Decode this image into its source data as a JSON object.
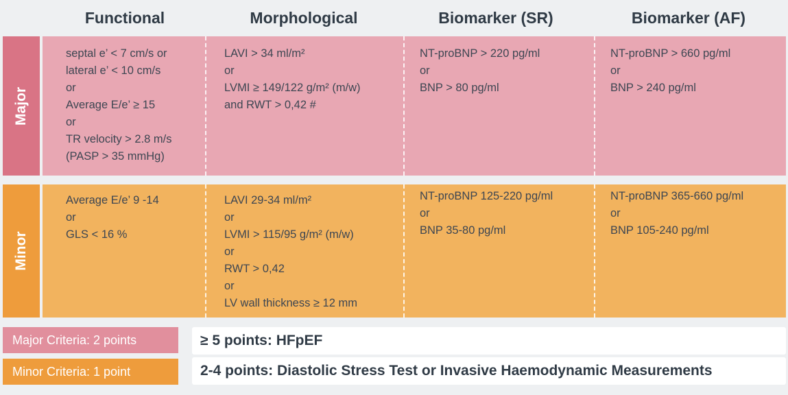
{
  "colors": {
    "major": "#e8a7b3",
    "major_label": "#d97485",
    "minor": "#f2b35e",
    "minor_label": "#ee9c3c",
    "background": "#eef0f2"
  },
  "headers": [
    "Functional",
    "Morphological",
    "Biomarker (SR)",
    "Biomarker (AF)"
  ],
  "rows": [
    {
      "label": "Major",
      "cells": [
        [
          "septal e’ < 7 cm/s or",
          "lateral e’ < 10 cm/s",
          "or",
          "Average E/e’ ≥ 15",
          "or",
          "TR velocity > 2.8 m/s",
          "(PASP > 35 mmHg)"
        ],
        [
          "LAVI > 34 ml/m²",
          "or",
          "LVMI ≥ 149/122 g/m² (m/w)",
          "and RWT > 0,42 #"
        ],
        [
          "NT-proBNP > 220 pg/ml",
          "or",
          "BNP > 80 pg/ml"
        ],
        [
          "NT-proBNP > 660 pg/ml",
          "or",
          "BNP > 240 pg/ml"
        ]
      ]
    },
    {
      "label": "Minor",
      "cells": [
        [
          "Average E/e’ 9 -14",
          "or",
          "GLS < 16 %"
        ],
        [
          "LAVI 29-34 ml/m²",
          "or",
          "LVMI > 115/95 g/m² (m/w)",
          "or",
          "RWT > 0,42",
          "or",
          "LV wall thickness ≥ 12 mm"
        ],
        [
          "NT-proBNP 125-220 pg/ml",
          "or",
          "BNP 35-80 pg/ml"
        ],
        [
          "NT-proBNP 365-660 pg/ml",
          "or",
          "BNP 105-240 pg/ml"
        ]
      ]
    }
  ],
  "legend": {
    "major": "Major Criteria: 2 points",
    "minor": "Minor Criteria: 1 point"
  },
  "results": {
    "high": "≥ 5 points: HFpEF",
    "mid": "2-4 points: Diastolic Stress Test or Invasive Haemodynamic Measurements"
  }
}
